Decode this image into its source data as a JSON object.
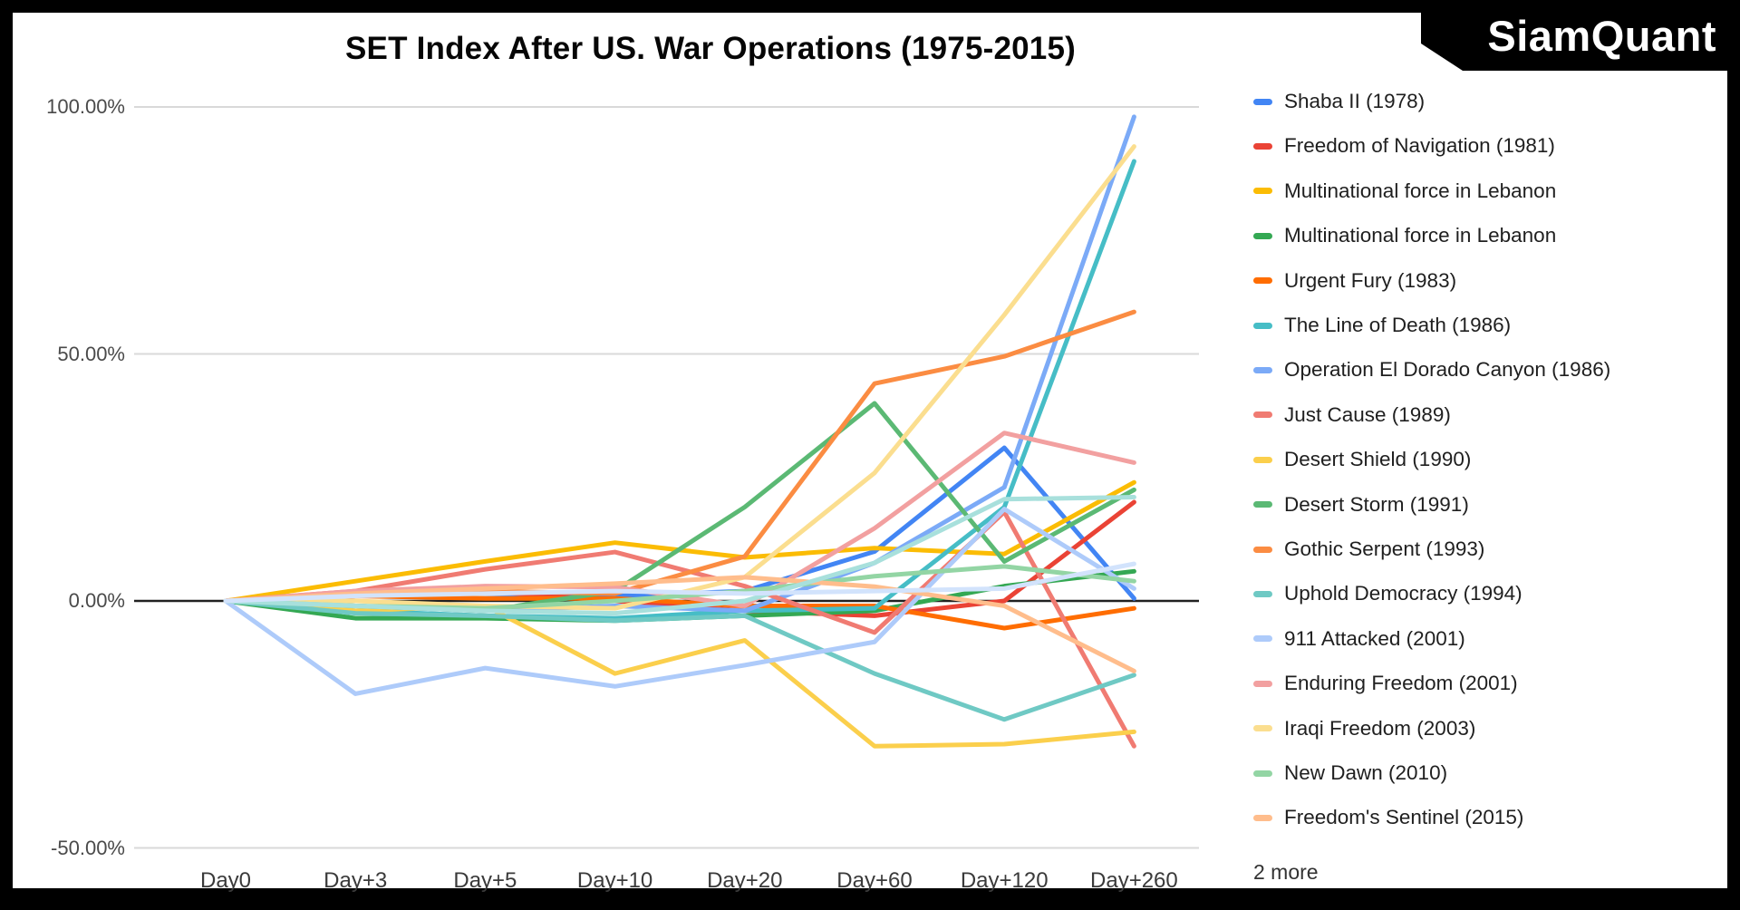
{
  "title": "SET Index After US. War Operations (1975-2015)",
  "brand": "SiamQuant",
  "legend": {
    "more_label": "2 more"
  },
  "chart_data": {
    "type": "line",
    "title": "SET Index After US. War Operations (1975-2015)",
    "categories": [
      "Day0",
      "Day+3",
      "Day+5",
      "Day+10",
      "Day+20",
      "Day+60",
      "Day+120",
      "Day+260"
    ],
    "xlabel": "",
    "ylabel": "",
    "ylim": [
      -50,
      100
    ],
    "grid": true,
    "legend_position": "right",
    "y_ticks": [
      {
        "label": "100.00%",
        "value": 100
      },
      {
        "label": "50.00%",
        "value": 50
      },
      {
        "label": "0.00%",
        "value": 0
      },
      {
        "label": "-50.00%",
        "value": -50
      }
    ],
    "series": [
      {
        "name": "Shaba II (1978)",
        "color": "#4285F4",
        "in_legend": true,
        "values": [
          0,
          1,
          1.5,
          1,
          2,
          10,
          31,
          0.5
        ]
      },
      {
        "name": "Freedom of Navigation (1981)",
        "color": "#EA4335",
        "in_legend": true,
        "values": [
          0,
          1,
          2,
          0,
          -2,
          -3,
          0,
          20
        ]
      },
      {
        "name": "Multinational force in Lebanon",
        "color": "#FBBC04",
        "in_legend": true,
        "values": [
          0,
          4,
          8,
          11.8,
          8.8,
          10.7,
          9.5,
          24
        ]
      },
      {
        "name": "Multinational force in Lebanon",
        "color": "#34A853",
        "in_legend": true,
        "values": [
          0,
          -3.5,
          -3.5,
          -4,
          -3,
          -2,
          3,
          6
        ]
      },
      {
        "name": "Urgent Fury (1983)",
        "color": "#FF6D01",
        "in_legend": true,
        "values": [
          0,
          1,
          0.5,
          0.5,
          -1,
          -1,
          -5.5,
          -1.5
        ]
      },
      {
        "name": "The Line of Death (1986)",
        "color": "#46BDC6",
        "in_legend": true,
        "values": [
          0,
          -2,
          -3,
          -3.5,
          -2,
          -1.5,
          19,
          89
        ]
      },
      {
        "name": "Operation El Dorado Canyon (1986)",
        "color": "#7BAAF7",
        "in_legend": true,
        "values": [
          0,
          -1,
          -2,
          -1,
          -2,
          7.7,
          23,
          98
        ]
      },
      {
        "name": "Just Cause (1989)",
        "color": "#F07B72",
        "in_legend": true,
        "values": [
          0,
          2,
          6.4,
          9.9,
          3,
          -6.4,
          18,
          -29.4
        ]
      },
      {
        "name": "Desert Shield (1990)",
        "color": "#FBCF4C",
        "in_legend": true,
        "values": [
          0,
          -2,
          -1,
          -14.7,
          -8,
          -29.4,
          -29,
          -26.5
        ]
      },
      {
        "name": "Desert Storm (1991)",
        "color": "#5BB974",
        "in_legend": true,
        "values": [
          0,
          -1,
          -2,
          2,
          19,
          40,
          8,
          22.5
        ]
      },
      {
        "name": "Gothic Serpent (1993)",
        "color": "#FB8C42",
        "in_legend": true,
        "values": [
          0,
          1,
          2,
          1.5,
          9,
          44,
          49.5,
          58.5
        ]
      },
      {
        "name": "Uphold Democracy (1994)",
        "color": "#6FC9C4",
        "in_legend": true,
        "values": [
          0,
          -2.5,
          -3,
          -4,
          -3,
          -14.7,
          -24,
          -15
        ]
      },
      {
        "name": "911 Attacked (2001)",
        "color": "#AECBFA",
        "in_legend": true,
        "values": [
          0,
          -18.8,
          -13.6,
          -17.3,
          -13,
          -8.3,
          18.6,
          2.5
        ]
      },
      {
        "name": "Enduring Freedom (2001)",
        "color": "#F2A0A0",
        "in_legend": true,
        "values": [
          0,
          2,
          3,
          2.8,
          -1,
          14.7,
          34,
          28
        ]
      },
      {
        "name": "Iraqi Freedom (2003)",
        "color": "#FBDE8F",
        "in_legend": true,
        "values": [
          0,
          0,
          -1,
          -1.5,
          4.8,
          25.9,
          57.9,
          92
        ]
      },
      {
        "name": "New Dawn (2010)",
        "color": "#93D5A4",
        "in_legend": true,
        "values": [
          0,
          -1,
          -1.5,
          0,
          2,
          5,
          7,
          4
        ]
      },
      {
        "name": "Freedom's Sentinel (2015)",
        "color": "#FFBD8C",
        "in_legend": true,
        "values": [
          0,
          1.5,
          2.5,
          3.5,
          4.8,
          2.9,
          -1,
          -14.2
        ]
      },
      {
        "name": "",
        "color": "#A8E0DC",
        "in_legend": false,
        "values": [
          0,
          -1,
          -2,
          -2.5,
          0,
          7.7,
          20.6,
          21
        ]
      },
      {
        "name": "",
        "color": "#D2E3FC",
        "in_legend": false,
        "values": [
          0,
          1,
          1.5,
          2,
          1.5,
          2,
          2.5,
          7.5
        ]
      }
    ]
  }
}
